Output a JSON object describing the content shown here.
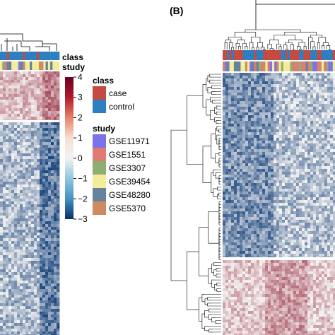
{
  "panel_label": "(B)",
  "annotation_row_labels": {
    "class": "class",
    "study": "study"
  },
  "colors": {
    "case": "#c64a3f",
    "control": "#2c7fc0",
    "GSE11971": "#7b73e8",
    "GSE1551": "#e07a74",
    "GSE3307": "#8fae72",
    "GSE39454": "#f3ed9a",
    "GSE48280": "#66829c",
    "GSE5370": "#cf8a63",
    "heat_low": "#0b3a77",
    "heat_mid": "#f5f3f2",
    "heat_high": "#8a0f25"
  },
  "chart_data": {
    "type": "heatmap",
    "color_scale": {
      "min": -3,
      "max": 4,
      "ticks": [
        "4",
        "3",
        "2",
        "1",
        "0",
        "−1",
        "−2",
        "−3"
      ]
    },
    "legends": [
      {
        "title": "class",
        "entries": [
          "case",
          "control"
        ]
      },
      {
        "title": "study",
        "entries": [
          "GSE11971",
          "GSE1551",
          "GSE3307",
          "GSE39454",
          "GSE48280",
          "GSE5370"
        ]
      }
    ]
  }
}
